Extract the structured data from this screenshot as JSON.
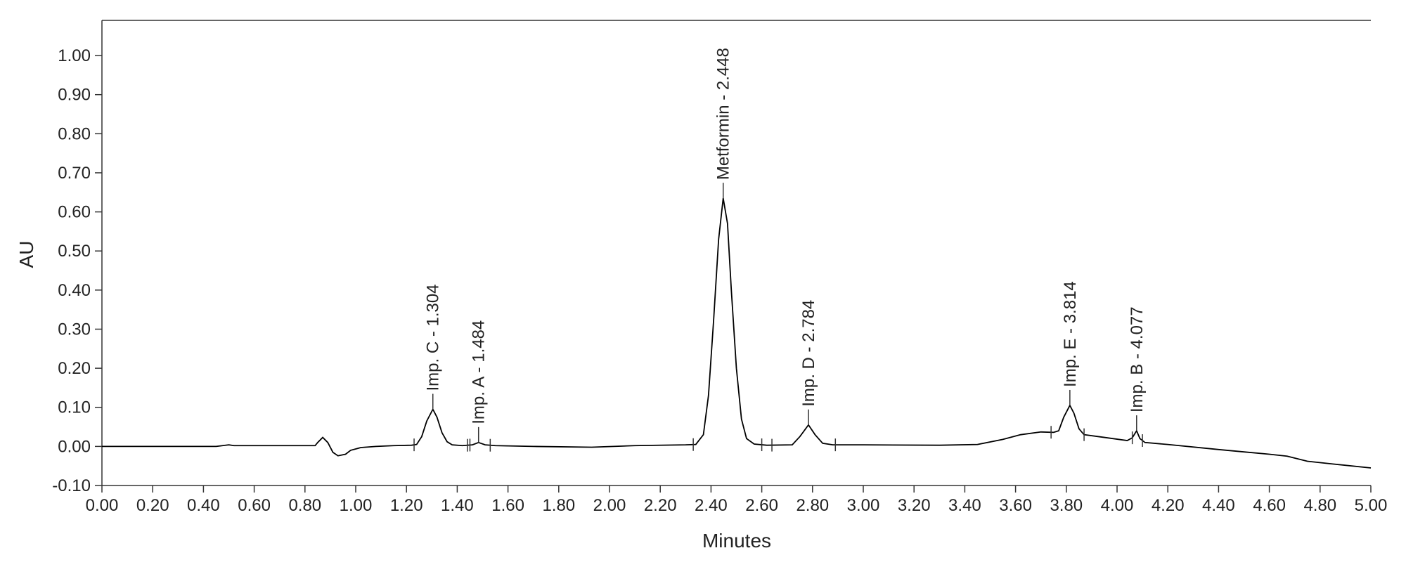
{
  "chart_data": {
    "type": "line",
    "xlabel": "Minutes",
    "ylabel": "AU",
    "color": "#000000",
    "xlim": [
      0,
      5
    ],
    "ylim": [
      -0.1,
      1.09
    ],
    "xticks": [
      {
        "value": 0,
        "label": "0.00"
      },
      {
        "value": 0.2,
        "label": "0.20"
      },
      {
        "value": 0.4,
        "label": "0.40"
      },
      {
        "value": 0.6,
        "label": "0.60"
      },
      {
        "value": 0.8,
        "label": "0.80"
      },
      {
        "value": 1,
        "label": "1.00"
      },
      {
        "value": 1.2,
        "label": "1.20"
      },
      {
        "value": 1.4,
        "label": "1.40"
      },
      {
        "value": 1.6,
        "label": "1.60"
      },
      {
        "value": 1.8,
        "label": "1.80"
      },
      {
        "value": 2,
        "label": "2.00"
      },
      {
        "value": 2.2,
        "label": "2.20"
      },
      {
        "value": 2.4,
        "label": "2.40"
      },
      {
        "value": 2.6,
        "label": "2.60"
      },
      {
        "value": 2.8,
        "label": "2.80"
      },
      {
        "value": 3,
        "label": "3.00"
      },
      {
        "value": 3.2,
        "label": "3.20"
      },
      {
        "value": 3.4,
        "label": "3.40"
      },
      {
        "value": 3.6,
        "label": "3.60"
      },
      {
        "value": 3.8,
        "label": "3.80"
      },
      {
        "value": 4,
        "label": "4.00"
      },
      {
        "value": 4.2,
        "label": "4.20"
      },
      {
        "value": 4.4,
        "label": "4.40"
      },
      {
        "value": 4.6,
        "label": "4.60"
      },
      {
        "value": 4.8,
        "label": "4.80"
      },
      {
        "value": 5,
        "label": "5.00"
      }
    ],
    "yticks": [
      {
        "value": -0.1,
        "label": "-0.10"
      },
      {
        "value": 0,
        "label": "0.00"
      },
      {
        "value": 0.1,
        "label": "0.10"
      },
      {
        "value": 0.2,
        "label": "0.20"
      },
      {
        "value": 0.3,
        "label": "0.30"
      },
      {
        "value": 0.4,
        "label": "0.40"
      },
      {
        "value": 0.5,
        "label": "0.50"
      },
      {
        "value": 0.6,
        "label": "0.60"
      },
      {
        "value": 0.7,
        "label": "0.70"
      },
      {
        "value": 0.8,
        "label": "0.80"
      },
      {
        "value": 0.9,
        "label": "0.90"
      },
      {
        "value": 1,
        "label": "1.00"
      }
    ],
    "x": [
      0,
      0.45,
      0.5,
      0.52,
      0.55,
      0.84,
      0.85,
      0.87,
      0.89,
      0.91,
      0.93,
      0.96,
      0.98,
      1.02,
      1.08,
      1.15,
      1.22,
      1.24,
      1.26,
      1.28,
      1.304,
      1.32,
      1.34,
      1.36,
      1.38,
      1.42,
      1.46,
      1.484,
      1.51,
      1.55,
      1.7,
      1.93,
      2.1,
      2.3,
      2.34,
      2.37,
      2.39,
      2.41,
      2.43,
      2.448,
      2.465,
      2.48,
      2.5,
      2.52,
      2.54,
      2.57,
      2.62,
      2.72,
      2.75,
      2.784,
      2.81,
      2.84,
      2.88,
      3.0,
      3.3,
      3.45,
      3.55,
      3.62,
      3.7,
      3.75,
      3.77,
      3.79,
      3.814,
      3.83,
      3.85,
      3.87,
      3.95,
      4.04,
      4.06,
      4.077,
      4.09,
      4.11,
      4.2,
      4.4,
      4.6,
      4.67,
      4.75,
      4.85,
      5.0
    ],
    "values": [
      0,
      0,
      0.004,
      0.002,
      0.002,
      0.002,
      0.01,
      0.023,
      0.01,
      -0.015,
      -0.024,
      -0.02,
      -0.01,
      -0.003,
      0,
      0.002,
      0.003,
      0.005,
      0.025,
      0.065,
      0.095,
      0.075,
      0.035,
      0.012,
      0.004,
      0.002,
      0.004,
      0.01,
      0.004,
      0.002,
      0,
      -0.002,
      0.002,
      0.004,
      0.005,
      0.03,
      0.13,
      0.32,
      0.53,
      0.635,
      0.57,
      0.4,
      0.2,
      0.07,
      0.02,
      0.006,
      0.003,
      0.004,
      0.025,
      0.055,
      0.03,
      0.008,
      0.004,
      0.004,
      0.003,
      0.005,
      0.018,
      0.03,
      0.037,
      0.036,
      0.04,
      0.075,
      0.105,
      0.085,
      0.045,
      0.03,
      0.023,
      0.015,
      0.022,
      0.04,
      0.02,
      0.01,
      0.005,
      -0.008,
      -0.02,
      -0.025,
      -0.038,
      -0.045,
      -0.055
    ],
    "annotations": [
      {
        "text": "Imp. C - 1.304",
        "x": 1.304,
        "y": 0.095
      },
      {
        "text": "Imp. A - 1.484",
        "x": 1.484,
        "y": 0.01
      },
      {
        "text": "Metformin - 2.448",
        "x": 2.448,
        "y": 0.635
      },
      {
        "text": "Imp. D - 2.784",
        "x": 2.784,
        "y": 0.055
      },
      {
        "text": "Imp. E - 3.814",
        "x": 3.814,
        "y": 0.105
      },
      {
        "text": "Imp. B - 4.077",
        "x": 4.077,
        "y": 0.04
      }
    ],
    "peak_marks": [
      1.23,
      1.44,
      1.45,
      1.53,
      2.33,
      2.6,
      2.64,
      2.89,
      3.74,
      3.87,
      4.06,
      4.1
    ]
  }
}
